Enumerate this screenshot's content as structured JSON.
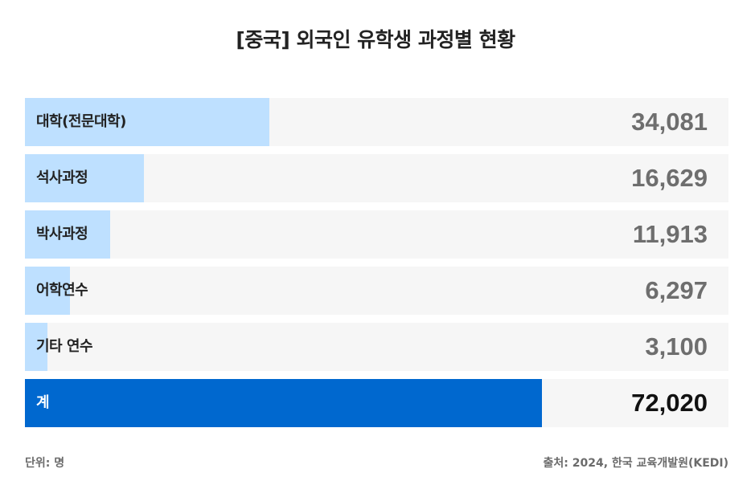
{
  "chart_data": {
    "type": "bar",
    "title": "[중국] 외국인 유학생 과정별 현황",
    "categories": [
      "대학(전문대학)",
      "석사과정",
      "박사과정",
      "어학연수",
      "기타 연수",
      "계"
    ],
    "values": [
      34081,
      16629,
      11913,
      6297,
      3100,
      72020
    ],
    "value_labels": [
      "34,081",
      "16,629",
      "11,913",
      "6,297",
      "3,100",
      "72,020"
    ],
    "orientation": "horizontal",
    "xlim": [
      0,
      98000
    ],
    "colors": {
      "bar": "#bee0ff",
      "total_bar": "#0068cf",
      "track": "#f6f6f6"
    }
  },
  "footer": {
    "unit": "단위: 명",
    "source": "출처: 2024, 한국 교육개발원(KEDI)"
  }
}
